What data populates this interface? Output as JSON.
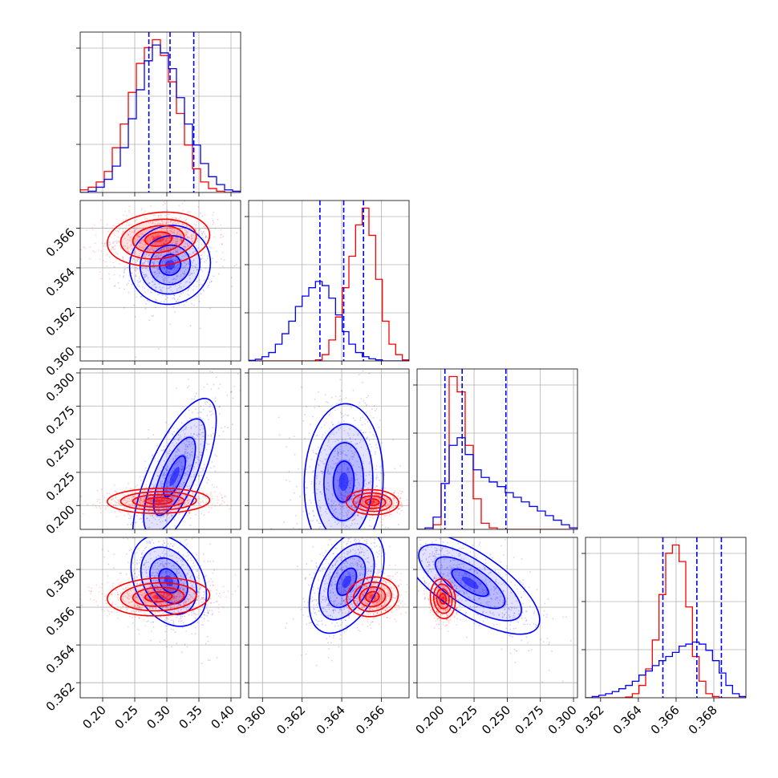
{
  "chart_data": {
    "type": "corner",
    "parameters": 4,
    "colors": {
      "red": "#ff0000",
      "blue": "#0000ff"
    },
    "grid": true,
    "axes": [
      {
        "ticks": [
          0.2,
          0.25,
          0.3,
          0.35,
          0.4
        ],
        "tick_labels": [
          "0.20",
          "0.25",
          "0.30",
          "0.35",
          "0.40"
        ],
        "range": [
          0.165,
          0.415
        ]
      },
      {
        "ticks": [
          0.36,
          0.362,
          0.364,
          0.366
        ],
        "tick_labels": [
          "0.360",
          "0.362",
          "0.364",
          "0.366"
        ],
        "range": [
          0.3593,
          0.3674
        ]
      },
      {
        "ticks": [
          0.2,
          0.225,
          0.25,
          0.275,
          0.3
        ],
        "tick_labels": [
          "0.200",
          "0.225",
          "0.250",
          "0.275",
          "0.300"
        ],
        "range": [
          0.182,
          0.303
        ]
      },
      {
        "ticks": [
          0.362,
          0.364,
          0.366,
          0.368
        ],
        "tick_labels": [
          "0.362",
          "0.364",
          "0.366",
          "0.368"
        ],
        "range": [
          0.3612,
          0.3697
        ]
      }
    ],
    "quantiles_blue": [
      [
        0.272,
        0.305,
        0.342
      ],
      [
        0.3629,
        0.3641,
        0.3651
      ],
      [
        0.203,
        0.216,
        0.249
      ],
      [
        0.3653,
        0.3671,
        0.3684
      ]
    ],
    "histograms": [
      {
        "red": [
          0.1,
          0.2,
          0.4,
          0.8,
          1.7,
          2.6,
          3.8,
          4.9,
          5.5,
          5.8,
          5.2,
          4.2,
          3.0,
          1.8,
          0.9,
          0.4,
          0.15,
          0.05,
          0.0,
          0.0
        ],
        "blue": [
          0.0,
          0.05,
          0.2,
          0.5,
          1.0,
          1.7,
          2.8,
          3.9,
          5.0,
          5.6,
          5.3,
          4.7,
          3.6,
          2.6,
          1.8,
          1.1,
          0.6,
          0.3,
          0.1,
          0.05
        ]
      },
      {
        "red": [
          0.0,
          0.0,
          0.0,
          0.0,
          0.0,
          0.0,
          0.0,
          0.0,
          0.0,
          0.0,
          0.05,
          0.3,
          1.0,
          2.1,
          3.5,
          5.0,
          6.5,
          7.3,
          6.0,
          3.9,
          1.9,
          0.8,
          0.3,
          0.05
        ],
        "blue": [
          0.03,
          0.08,
          0.2,
          0.4,
          0.8,
          1.3,
          1.9,
          2.6,
          3.1,
          3.5,
          3.8,
          3.6,
          3.0,
          2.2,
          1.4,
          0.8,
          0.4,
          0.2,
          0.1,
          0.05,
          0.0,
          0.0,
          0.0,
          0.0
        ]
      },
      {
        "red": [
          0.0,
          0.0,
          0.3,
          3.0,
          10.0,
          9.0,
          5.5,
          2.0,
          0.4,
          0.1,
          0.0,
          0.0,
          0.0,
          0.0,
          0.0,
          0.0,
          0.0,
          0.0,
          0.0,
          0.0
        ],
        "blue": [
          0.0,
          0.1,
          0.8,
          3.0,
          5.5,
          6.0,
          4.9,
          3.9,
          3.4,
          3.1,
          2.8,
          2.4,
          2.1,
          1.8,
          1.5,
          1.2,
          0.9,
          0.6,
          0.3,
          0.1
        ]
      },
      {
        "red": [
          0.0,
          0.0,
          0.0,
          0.0,
          0.0,
          0.0,
          0.02,
          0.1,
          0.3,
          0.7,
          1.4,
          2.5,
          3.5,
          3.7,
          3.3,
          2.2,
          1.0,
          0.4,
          0.1,
          0.03,
          0.0,
          0.0,
          0.0,
          0.0
        ],
        "blue": [
          0.0,
          0.03,
          0.06,
          0.1,
          0.15,
          0.22,
          0.3,
          0.4,
          0.55,
          0.65,
          0.78,
          0.9,
          1.0,
          1.1,
          1.25,
          1.3,
          1.35,
          1.3,
          1.15,
          0.9,
          0.6,
          0.3,
          0.1,
          0.03
        ]
      }
    ],
    "joint": [
      {
        "i": 1,
        "j": 0,
        "red": {
          "mx": 0.287,
          "my": 0.36545,
          "sx": 0.038,
          "sy": 0.00065,
          "rho": 0.15
        },
        "blue": {
          "mx": 0.305,
          "my": 0.36415,
          "sx": 0.03,
          "sy": 0.00095,
          "rho": 0.05
        }
      },
      {
        "i": 2,
        "j": 0,
        "red": {
          "mx": 0.287,
          "my": 0.2035,
          "sx": 0.038,
          "sy": 0.0045,
          "rho": 0.05
        },
        "blue": {
          "mx": 0.312,
          "my": 0.222,
          "sx": 0.031,
          "sy": 0.028,
          "rho": 0.72
        }
      },
      {
        "i": 2,
        "j": 1,
        "red": {
          "mx": 0.36555,
          "my": 0.2025,
          "sx": 0.00063,
          "sy": 0.0045,
          "rho": -0.05
        },
        "blue": {
          "mx": 0.3641,
          "my": 0.218,
          "sx": 0.00095,
          "sy": 0.028,
          "rho": 0.05
        }
      },
      {
        "i": 3,
        "j": 0,
        "red": {
          "mx": 0.287,
          "my": 0.36655,
          "sx": 0.038,
          "sy": 0.00048,
          "rho": 0.1
        },
        "blue": {
          "mx": 0.303,
          "my": 0.3674,
          "sx": 0.028,
          "sy": 0.00115,
          "rho": -0.3
        }
      },
      {
        "i": 3,
        "j": 1,
        "red": {
          "mx": 0.36555,
          "my": 0.36655,
          "sx": 0.00062,
          "sy": 0.0005,
          "rho": 0.1
        },
        "blue": {
          "mx": 0.36425,
          "my": 0.36735,
          "sx": 0.0009,
          "sy": 0.0013,
          "rho": 0.45
        }
      },
      {
        "i": 3,
        "j": 2,
        "red": {
          "mx": 0.2015,
          "my": 0.36645,
          "sx": 0.0045,
          "sy": 0.0005,
          "rho": -0.1
        },
        "blue": {
          "mx": 0.222,
          "my": 0.3673,
          "sx": 0.025,
          "sy": 0.0013,
          "rho": -0.72
        }
      }
    ]
  }
}
